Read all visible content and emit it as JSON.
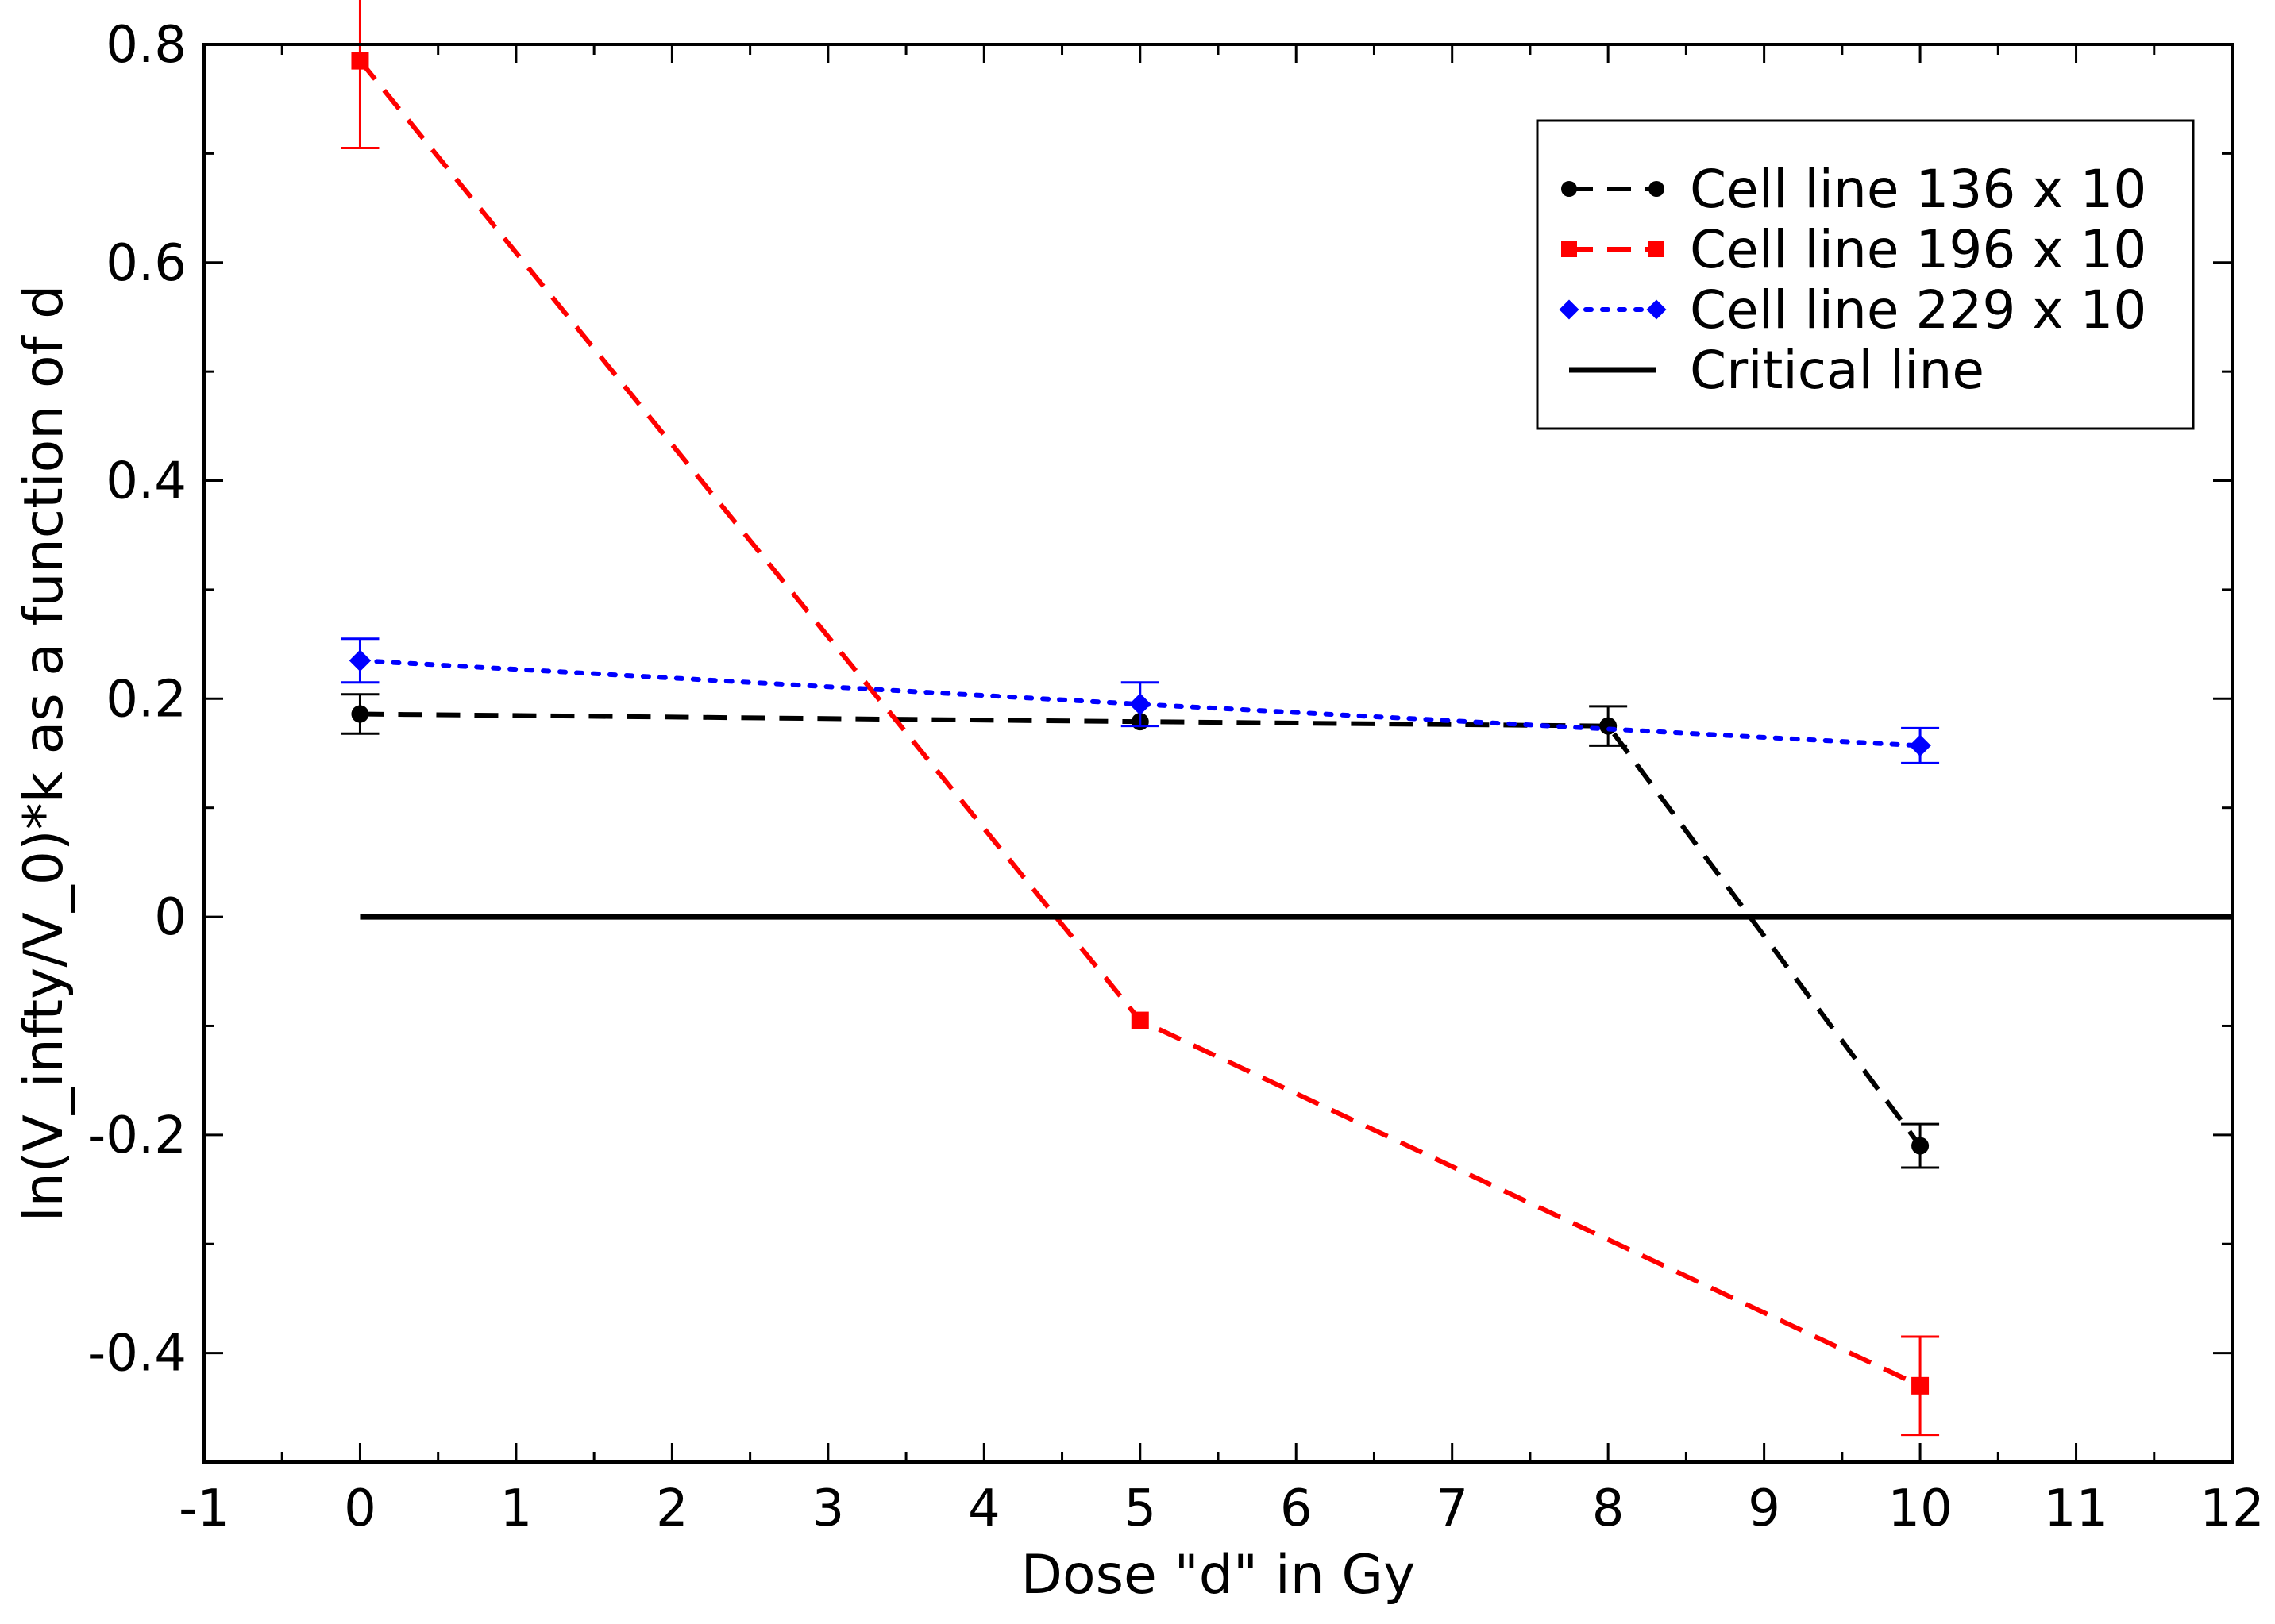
{
  "chart_data": {
    "type": "line",
    "title": "",
    "xlabel": "Dose \"d\" in Gy",
    "ylabel": "ln(V_infty/V_0)*k as a function of d",
    "xlim": [
      -1,
      12
    ],
    "ylim": [
      -0.5,
      0.8
    ],
    "x_ticks": [
      -1,
      0,
      1,
      2,
      3,
      4,
      5,
      6,
      7,
      8,
      9,
      10,
      11,
      12
    ],
    "x_tick_labels": [
      "-1",
      "0",
      "1",
      "2",
      "3",
      "4",
      "5",
      "6",
      "7",
      "8",
      "9",
      "10",
      "11",
      "12"
    ],
    "y_ticks": [
      -0.4,
      -0.2,
      0,
      0.2,
      0.4,
      0.6,
      0.8
    ],
    "y_tick_labels": [
      "-0.4",
      "-0.2",
      "0",
      "0.2",
      "0.4",
      "0.6",
      "0.8"
    ],
    "grid": false,
    "legend_position": "top-right",
    "series": [
      {
        "name": "Cell line 136 x 10",
        "color": "#000000",
        "line_style": "dashed",
        "marker": "circle",
        "x": [
          0,
          5,
          8,
          10
        ],
        "y": [
          0.186,
          0.179,
          0.175,
          -0.21
        ],
        "err": [
          0.018,
          0,
          0.018,
          0.02
        ]
      },
      {
        "name": "Cell line 196 x 10",
        "color": "#ff0000",
        "line_style": "dashed",
        "marker": "square",
        "x": [
          0,
          5,
          10
        ],
        "y": [
          0.785,
          -0.095,
          -0.43
        ],
        "err": [
          0.08,
          0,
          0.045
        ]
      },
      {
        "name": "Cell line 229 x 10",
        "color": "#0000ff",
        "line_style": "dotted",
        "marker": "diamond",
        "x": [
          0,
          5,
          10
        ],
        "y": [
          0.235,
          0.195,
          0.157
        ],
        "err": [
          0.02,
          0.02,
          0.016
        ]
      },
      {
        "name": "Critical line",
        "color": "#000000",
        "line_style": "solid",
        "marker": "none",
        "x": [
          0,
          12
        ],
        "y": [
          0,
          0
        ],
        "err": [
          0,
          0
        ]
      }
    ]
  }
}
